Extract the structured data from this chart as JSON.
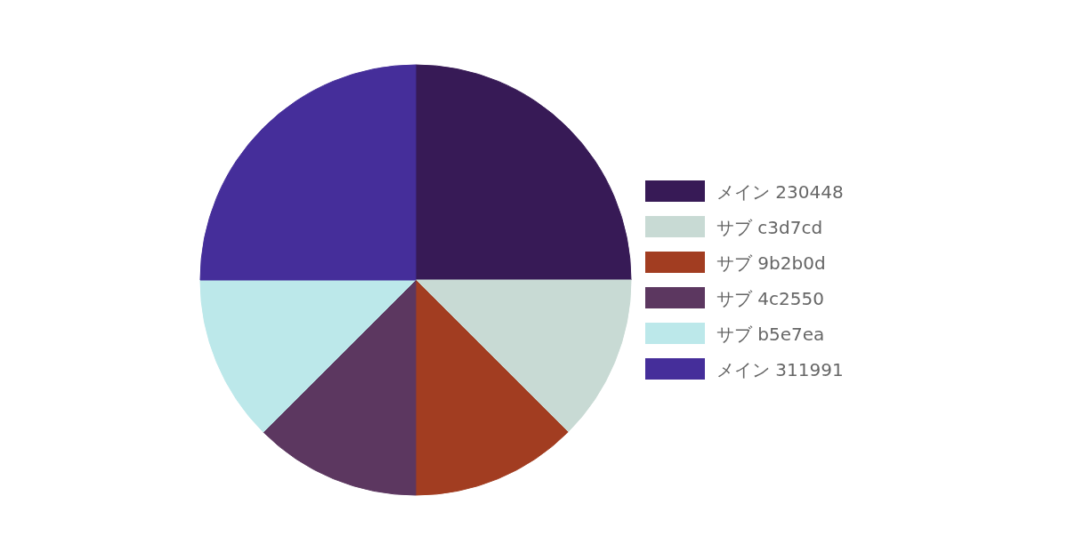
{
  "chart_data": {
    "type": "pie",
    "categories": [
      "メイン 230448",
      "サブ c3d7cd",
      "サブ 9b2b0d",
      "サブ 4c2550",
      "サブ b5e7ea",
      "メイン 311991"
    ],
    "values": [
      25,
      12.5,
      12.5,
      12.5,
      12.5,
      25
    ],
    "colors": [
      "#371a56",
      "#c8dad4",
      "#a23d21",
      "#5c3760",
      "#bce8ea",
      "#452e9a"
    ],
    "legend": "right"
  }
}
